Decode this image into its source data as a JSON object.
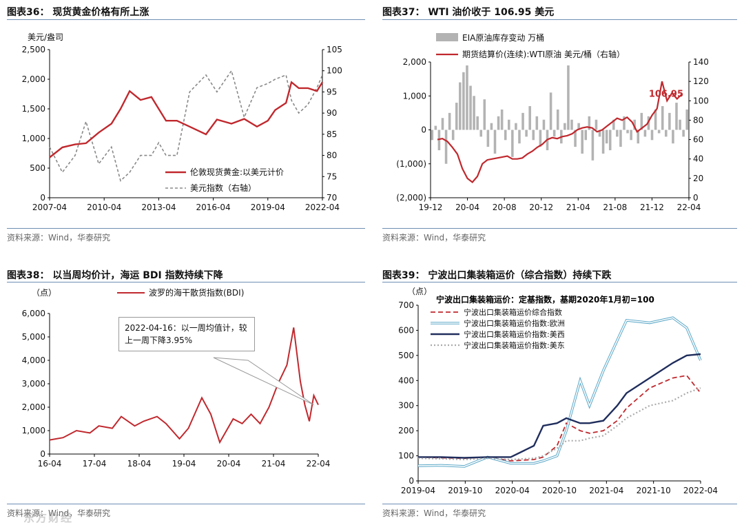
{
  "charts": [
    {
      "title": "图表36：  现货黄金价格有所上涨",
      "source": "资料来源：Wind，华泰研究",
      "chart_data": {
        "type": "line",
        "ylabel": "美元/盎司",
        "ylim": [
          0,
          2500
        ],
        "yticks": [
          "0",
          "500",
          "1,000",
          "1,500",
          "2,000",
          "2,500"
        ],
        "y2lim": [
          70,
          105
        ],
        "y2ticks": [
          "70",
          "75",
          "80",
          "85",
          "90",
          "95",
          "100",
          "105"
        ],
        "xticks": [
          "2007-04",
          "2010-04",
          "2013-04",
          "2016-04",
          "2019-04",
          "2022-04"
        ],
        "x": [
          2007.3,
          2008.0,
          2008.7,
          2009.3,
          2010.0,
          2010.7,
          2011.2,
          2011.7,
          2012.3,
          2012.9,
          2013.3,
          2013.7,
          2014.3,
          2015.0,
          2015.9,
          2016.5,
          2017.3,
          2018.0,
          2018.7,
          2019.3,
          2019.7,
          2020.3,
          2020.6,
          2021.0,
          2021.5,
          2022.0,
          2022.3
        ],
        "series": [
          {
            "name": "伦敦现货黄金:以美元计价",
            "axis": "left",
            "color": "#c0282d",
            "values": [
              680,
              850,
              900,
              920,
              1100,
              1250,
              1500,
              1800,
              1650,
              1700,
              1500,
              1300,
              1300,
              1200,
              1070,
              1320,
              1250,
              1330,
              1200,
              1300,
              1480,
              1600,
              1950,
              1850,
              1850,
              1800,
              1950
            ]
          },
          {
            "name": "美元指数（右轴）",
            "axis": "right",
            "color": "#888888",
            "values": [
              82,
              76,
              80,
              88,
              78,
              82,
              74,
              76,
              80,
              80,
              83,
              80,
              80,
              95,
              99,
              95,
              100,
              89,
              96,
              97,
              98,
              99,
              93,
              90,
              92,
              96,
              99
            ]
          }
        ]
      }
    },
    {
      "title": "图表37：  WTI 油价收于 106.95 美元",
      "source": "资料来源：Wind，华泰研究",
      "chart_data": {
        "type": "bar",
        "ylim": [
          -2000,
          2000
        ],
        "yticks": [
          "(2,000)",
          "(1,000)",
          "0",
          "1,000",
          "2,000"
        ],
        "y2lim": [
          0,
          140
        ],
        "y2ticks": [
          "0",
          "20",
          "40",
          "60",
          "80",
          "100",
          "120",
          "140"
        ],
        "xticks": [
          "19-12",
          "20-04",
          "20-08",
          "20-12",
          "21-04",
          "21-08",
          "21-12",
          "22-04"
        ],
        "annotation": "106.95",
        "series": [
          {
            "name": "EIA原油库存变动 万桶",
            "axis": "left",
            "color": "#b3b3b3",
            "values": [
              -300,
              120,
              -600,
              350,
              -1000,
              500,
              -300,
              800,
              1400,
              1700,
              1900,
              1300,
              1000,
              400,
              -200,
              900,
              -500,
              200,
              -700,
              400,
              600,
              -300,
              300,
              -800,
              200,
              -400,
              500,
              -200,
              700,
              -300,
              400,
              -500,
              300,
              -600,
              1100,
              -200,
              600,
              -400,
              200,
              1900,
              300,
              -500,
              200,
              -700,
              -300,
              400,
              -900,
              300,
              -200,
              -700,
              -400,
              -600,
              300,
              -200,
              -500,
              400,
              -100,
              -300,
              300,
              -400,
              500,
              -200,
              400,
              -300,
              600,
              -100,
              700,
              -200,
              500,
              -400,
              800,
              300,
              -200,
              600
            ]
          },
          {
            "name": "期货结算价(连续):WTI原油 美元/桶（右轴）",
            "axis": "right",
            "color": "#c0282d",
            "values": [
              60,
              61,
              58,
              52,
              45,
              30,
              20,
              16,
              22,
              35,
              39,
              40,
              41,
              42,
              43,
              40,
              40,
              41,
              45,
              48,
              52,
              55,
              60,
              62,
              61,
              63,
              64,
              66,
              70,
              72,
              73,
              72,
              68,
              70,
              74,
              78,
              82,
              80,
              83,
              78,
              68,
              72,
              76,
              85,
              92,
              120,
              100,
              108,
              102,
              106.95
            ]
          }
        ]
      }
    },
    {
      "title": "图表38：  以当周均价计，海运 BDI 指数持续下降",
      "source": "资料来源：Wind，华泰研究",
      "callout": "2022-04-16：以一周均值计，较上一周下降3.95%",
      "chart_data": {
        "type": "line",
        "ylabel": "（点）",
        "ylim": [
          0,
          6000
        ],
        "yticks": [
          "0",
          "1,000",
          "2,000",
          "3,000",
          "4,000",
          "5,000",
          "6,000"
        ],
        "xticks": [
          "16-04",
          "17-04",
          "18-04",
          "19-04",
          "20-04",
          "21-04",
          "22-04"
        ],
        "x": [
          2016.3,
          2016.6,
          2016.9,
          2017.2,
          2017.4,
          2017.7,
          2017.9,
          2018.2,
          2018.4,
          2018.7,
          2018.9,
          2019.2,
          2019.4,
          2019.7,
          2019.9,
          2020.1,
          2020.4,
          2020.6,
          2020.8,
          2021.0,
          2021.2,
          2021.4,
          2021.6,
          2021.75,
          2021.9,
          2022.0,
          2022.1,
          2022.2,
          2022.3
        ],
        "series": [
          {
            "name": "波罗的海干散货指数(BDI)",
            "axis": "left",
            "color": "#c0282d",
            "values": [
              600,
              700,
              1000,
              900,
              1200,
              1100,
              1600,
              1200,
              1400,
              1600,
              1300,
              650,
              1100,
              2400,
              1700,
              500,
              1500,
              1300,
              1700,
              1300,
              2000,
              3000,
              3800,
              5400,
              3100,
              2100,
              1400,
              2500,
              2100
            ]
          }
        ]
      }
    },
    {
      "title": "图表39：  宁波出口集装箱运价（综合指数）持续下跌",
      "source": "资料来源：Wind，华泰研究",
      "chart_data": {
        "type": "line",
        "title": "宁波出口集装箱运价：定基指数，基期2020年1月初=100",
        "ylabel": "（点）",
        "ylim": [
          0,
          700
        ],
        "yticks": [
          "0",
          "100",
          "200",
          "300",
          "400",
          "500",
          "600",
          "700"
        ],
        "xticks": [
          "2019-04",
          "2019-10",
          "2020-04",
          "2020-10",
          "2021-04",
          "2021-10",
          "2022-04"
        ],
        "x": [
          2019.25,
          2019.5,
          2019.75,
          2020.0,
          2020.25,
          2020.5,
          2020.6,
          2020.75,
          2020.85,
          2021.0,
          2021.1,
          2021.25,
          2021.4,
          2021.5,
          2021.75,
          2022.0,
          2022.15,
          2022.3
        ],
        "series": [
          {
            "name": "宁波出口集装箱运价综合指数",
            "axis": "left",
            "color": "#c0282d",
            "values": [
              95,
              92,
              90,
              95,
              80,
              85,
              95,
              140,
              230,
              200,
              190,
              200,
              240,
              290,
              370,
              410,
              420,
              350
            ]
          },
          {
            "name": "宁波出口集装箱运价指数:欧洲",
            "axis": "left",
            "color": "#9cd0e4",
            "values": [
              60,
              62,
              58,
              95,
              70,
              70,
              80,
              100,
              200,
              400,
              300,
              440,
              560,
              640,
              630,
              650,
              610,
              480
            ]
          },
          {
            "name": "宁波出口集装箱运价指数:美西",
            "axis": "left",
            "color": "#1f2d5c",
            "values": [
              95,
              95,
              92,
              95,
              95,
              140,
              220,
              230,
              250,
              230,
              230,
              240,
              300,
              350,
              410,
              470,
              500,
              505
            ]
          },
          {
            "name": "宁波出口集装箱运价指数:美东",
            "axis": "left",
            "color": "#aaaaaa",
            "values": [
              90,
              88,
              85,
              90,
              85,
              90,
              100,
              130,
              160,
              160,
              170,
              180,
              220,
              250,
              300,
              320,
              350,
              370
            ]
          }
        ]
      }
    }
  ],
  "watermark": "东方财经"
}
